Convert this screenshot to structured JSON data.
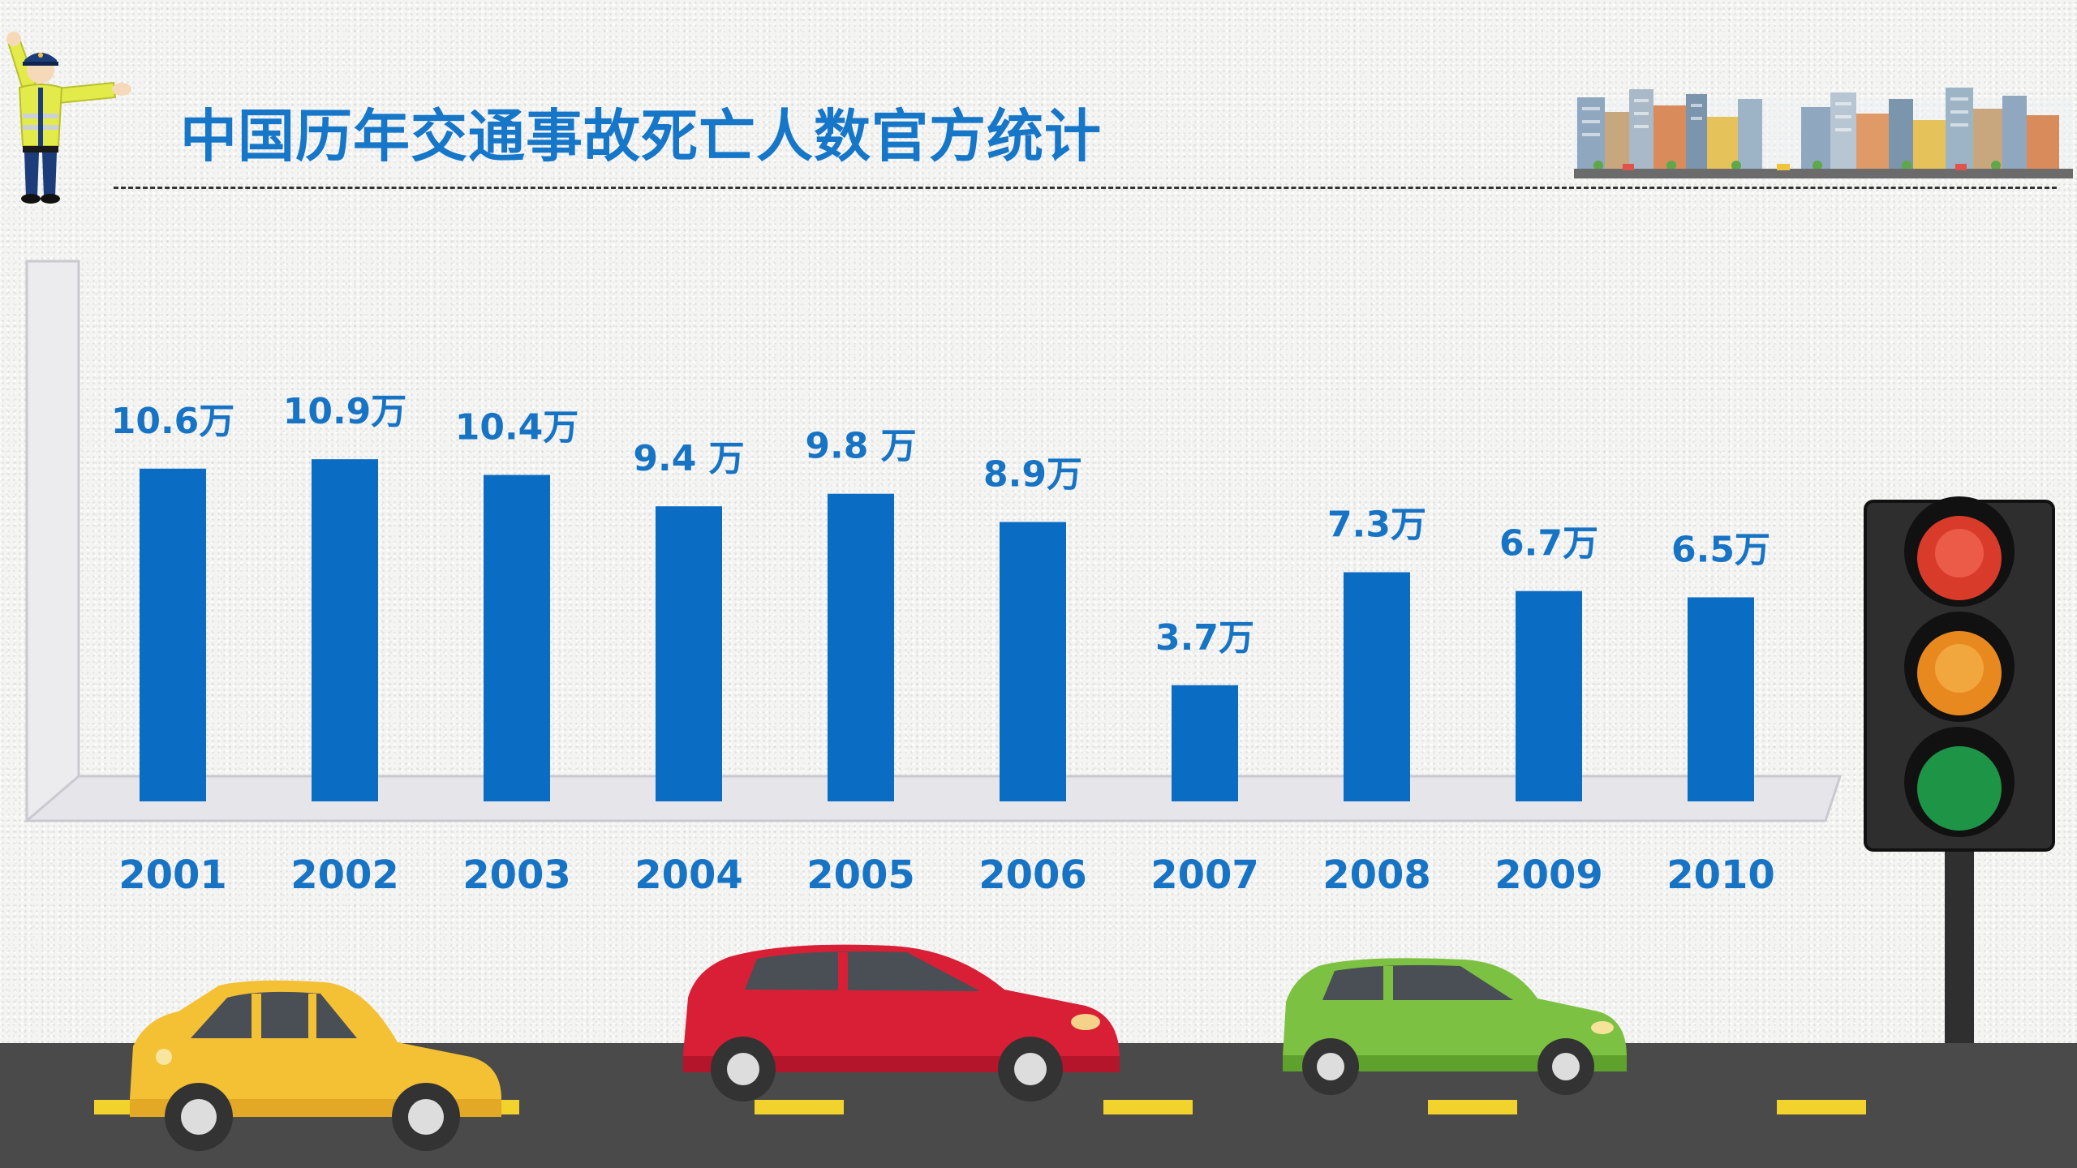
{
  "header": {
    "title": "中国历年交通事故死亡人数官方统计"
  },
  "chart_data": {
    "type": "bar",
    "title": "中国历年交通事故死亡人数官方统计",
    "categories": [
      "2001",
      "2002",
      "2003",
      "2004",
      "2005",
      "2006",
      "2007",
      "2008",
      "2009",
      "2010"
    ],
    "values": [
      10.6,
      10.9,
      10.4,
      9.4,
      9.8,
      8.9,
      3.7,
      7.3,
      6.7,
      6.5
    ],
    "value_labels": [
      "10.6万",
      "10.9万",
      "10.4万",
      "9.4 万",
      "9.8 万",
      "8.9万",
      "3.7万",
      "7.3万",
      "6.7万",
      "6.5万"
    ],
    "bar_color": "#0a6cc3",
    "label_color": "#1773c4",
    "xlabel": "",
    "ylabel": "",
    "grid": false
  },
  "decor": {
    "icons": [
      "traffic-police-icon",
      "city-skyline-icon",
      "traffic-light-icon",
      "yellow-car-icon",
      "red-car-icon",
      "green-car-icon",
      "road-icon"
    ],
    "road_color": "#4a4a4a",
    "lane_mark_color": "#f2d22c"
  }
}
